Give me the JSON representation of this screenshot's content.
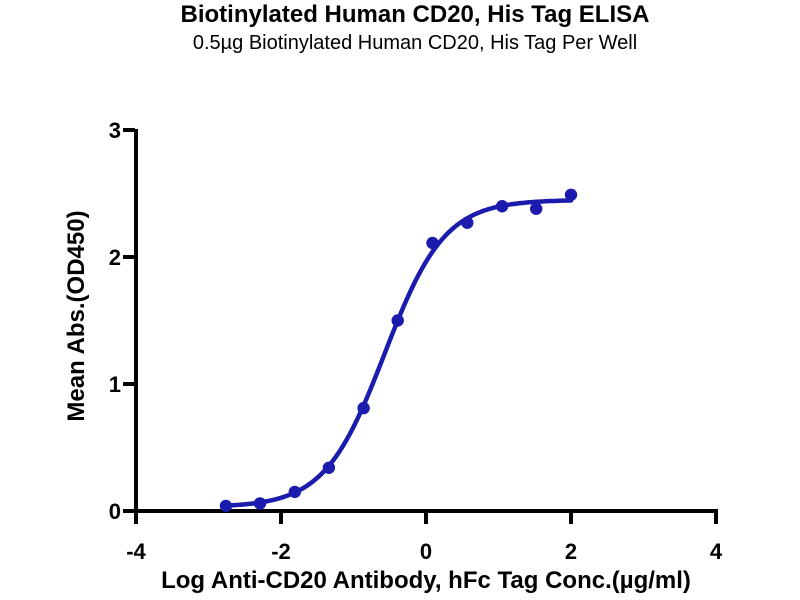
{
  "chart_data": {
    "type": "scatter",
    "title": "Biotinylated Human CD20, His Tag ELISA",
    "subtitle": "0.5µg Biotinylated Human CD20, His Tag Per Well",
    "xlabel": "Log Anti-CD20 Antibody, hFc Tag Conc.(µg/ml)",
    "ylabel": "Mean Abs.(OD450)",
    "x": [
      -2.76,
      -2.29,
      -1.81,
      -1.34,
      -0.86,
      -0.39,
      0.09,
      0.57,
      1.05,
      1.52,
      2.0
    ],
    "y": [
      0.04,
      0.06,
      0.15,
      0.34,
      0.81,
      1.5,
      2.11,
      2.27,
      2.4,
      2.38,
      2.49
    ],
    "xlim": [
      -4,
      4
    ],
    "ylim": [
      0,
      3
    ],
    "xticks": [
      -4,
      -2,
      0,
      2,
      4
    ],
    "yticks": [
      0,
      1,
      2,
      3
    ],
    "grid": false,
    "legend": null,
    "fit_curve": {
      "model": "4PL",
      "bottom": 0.03,
      "top": 2.45,
      "logEC50": -0.57,
      "hill": 1.05,
      "x_start": -2.76,
      "x_end": 2.0
    },
    "colors": {
      "points": "#1b1bad",
      "curve": "#1b1bad",
      "axis": "#000000",
      "background": "#ffffff"
    }
  }
}
